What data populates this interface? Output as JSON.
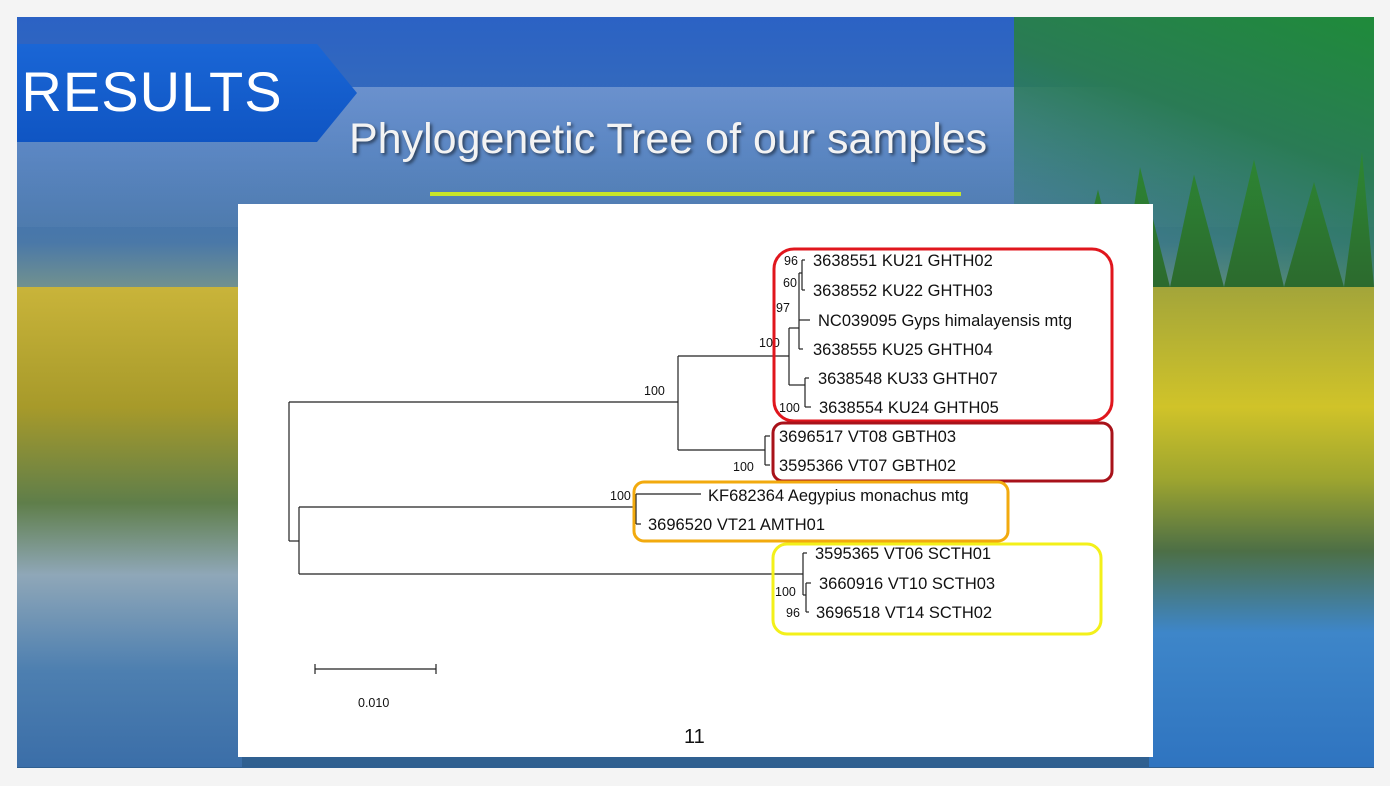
{
  "slide": {
    "section_label": "RESULTS",
    "subtitle": "Phylogenetic Tree of our samples",
    "page_number": "11"
  },
  "colors": {
    "badge_blue": "#1a66d6",
    "rule_lime": "#c8e62a",
    "group_ghth": "#e0161d",
    "group_gbth": "#a8121a",
    "group_amth": "#f2aa0e",
    "group_scth": "#f3f01a"
  },
  "tree": {
    "leaves": [
      "3638551 KU21 GHTH02",
      "3638552 KU22 GHTH03",
      "NC039095 Gyps himalayensis mtg",
      "3638555 KU25 GHTH04",
      "3638548 KU33 GHTH07",
      "3638554 KU24 GHTH05",
      "3696517 VT08 GBTH03",
      "3595366 VT07 GBTH02",
      "KF682364 Aegypius monachus mtg",
      "3696520 VT21 AMTH01",
      "3595365 VT06 SCTH01",
      "3660916 VT10 SCTH03",
      "3696518 VT14 SCTH02"
    ],
    "bootstrap": {
      "b96_top": "96",
      "b60": "60",
      "b97": "97",
      "b100_ghth": "100",
      "b100_ku": "100",
      "b100_gyps_clade": "100",
      "b100_gbth": "100",
      "b100_amth": "100",
      "b100_scth": "100",
      "b96_scth": "96"
    },
    "scale_label": "0.010"
  }
}
